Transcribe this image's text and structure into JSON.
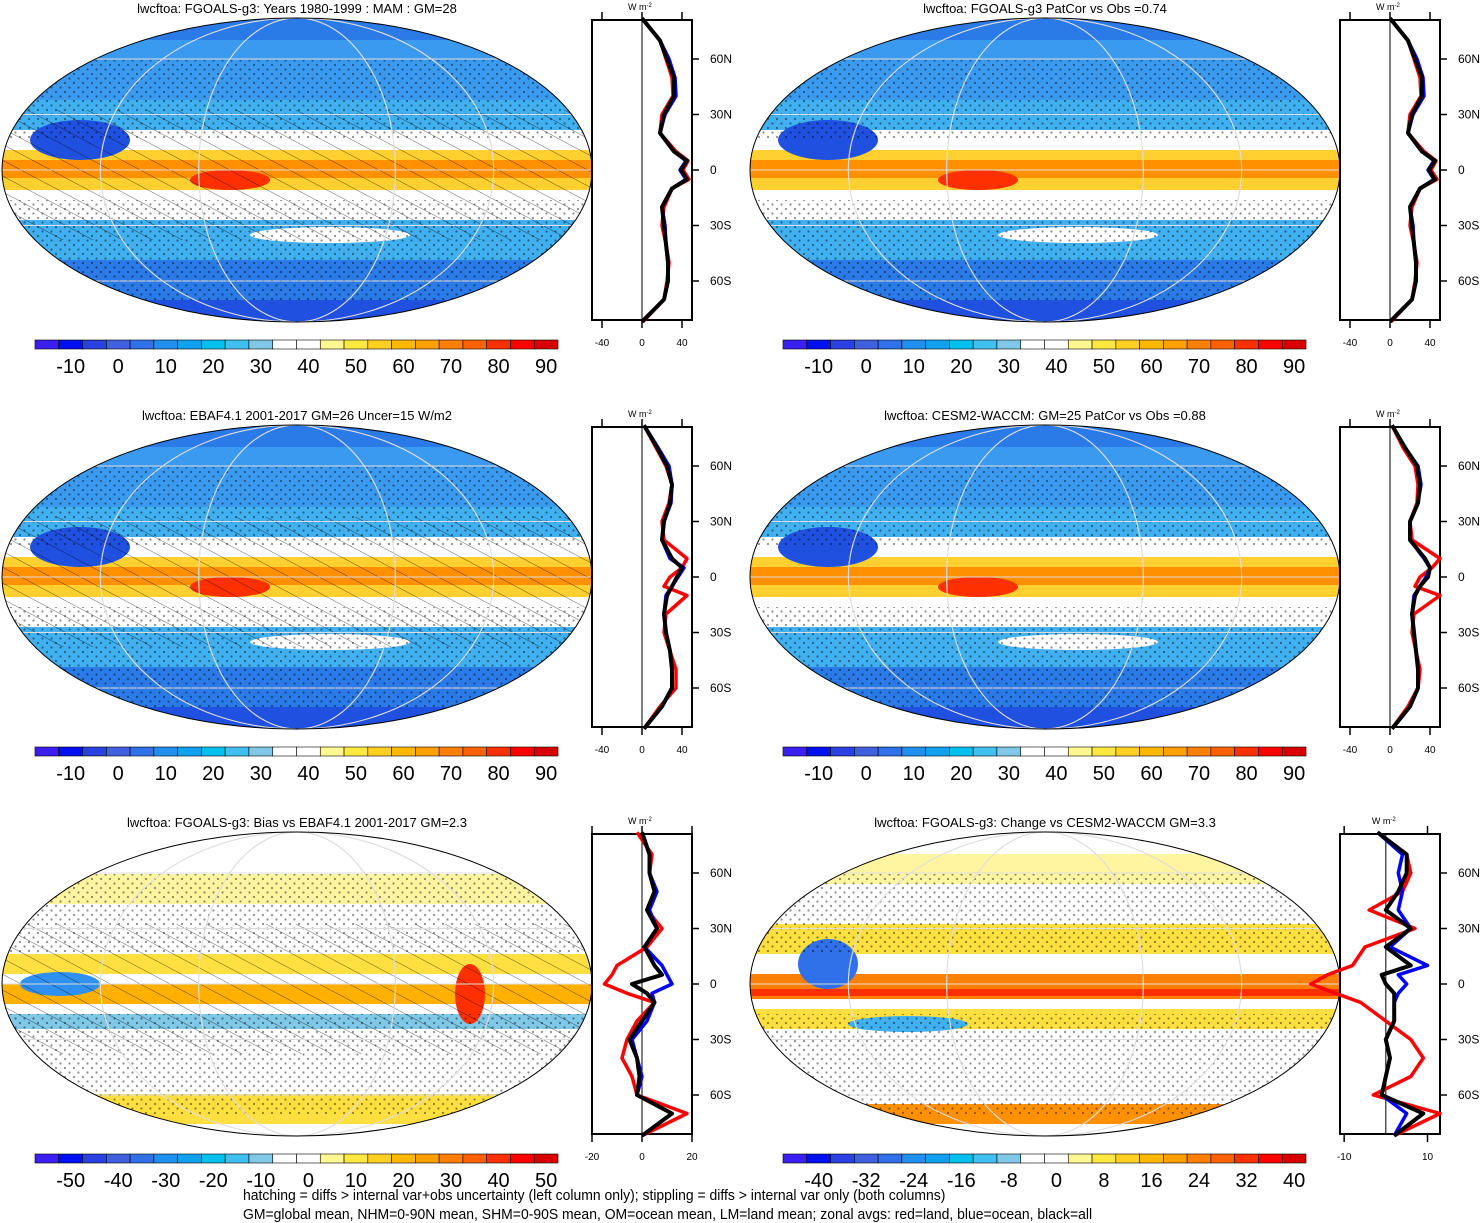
{
  "colorbar_colors": [
    "#3a1ff0",
    "#0010f0",
    "#2a40e0",
    "#4060e0",
    "#3070e8",
    "#2090f0",
    "#10a0f0",
    "#00c0f0",
    "#40c0f0",
    "#80c8e8",
    "#ffffff",
    "#ffffff",
    "#fff890",
    "#ffe840",
    "#ffd020",
    "#ffb800",
    "#ffa000",
    "#ff8000",
    "#ff6000",
    "#ff3000",
    "#ff0000",
    "#d80000"
  ],
  "series_colors": {
    "land": "#ff0000",
    "ocean": "#0000ff",
    "all": "#000000"
  },
  "zonal_unit": "W m",
  "zonal_unit_exp": "-2",
  "lat_labels": [
    "60N",
    "30N",
    "0",
    "30S",
    "60S"
  ],
  "chart_data": [
    {
      "type": "map+line",
      "title": "lwcftoa: FGOALS-g3: Years 1980-1999 : MAM : GM=28",
      "style": "clim",
      "colorbar_ticks": [
        "-10",
        "0",
        "10",
        "20",
        "30",
        "40",
        "50",
        "60",
        "70",
        "80",
        "90"
      ],
      "zonal_xticks": [
        "-40",
        "0",
        "40"
      ],
      "zonal_xlim": [
        -50,
        50
      ],
      "lat": [
        82,
        70,
        60,
        50,
        40,
        30,
        20,
        10,
        5,
        0,
        -5,
        -10,
        -20,
        -30,
        -40,
        -50,
        -60,
        -70,
        -82
      ],
      "series": [
        {
          "name": "land",
          "values": [
            0,
            18,
            24,
            30,
            31,
            20,
            18,
            34,
            46,
            41,
            47,
            30,
            22,
            20,
            24,
            27,
            25,
            22,
            1
          ]
        },
        {
          "name": "ocean",
          "values": [
            0,
            18,
            27,
            33,
            34,
            23,
            18,
            32,
            44,
            38,
            44,
            30,
            20,
            23,
            24,
            26,
            26,
            22,
            0
          ]
        },
        {
          "name": "all",
          "values": [
            0,
            18,
            25,
            32,
            32,
            22,
            18,
            32,
            45,
            39,
            45,
            30,
            20,
            22,
            24,
            26,
            26,
            22,
            0
          ]
        }
      ]
    },
    {
      "type": "map+line",
      "title": "lwcftoa: FGOALS-g3 PatCor vs Obs =0.74",
      "style": "clim",
      "colorbar_ticks": [
        "-10",
        "0",
        "10",
        "20",
        "30",
        "40",
        "50",
        "60",
        "70",
        "80",
        "90"
      ],
      "zonal_xticks": [
        "-40",
        "0",
        "40"
      ],
      "zonal_xlim": [
        -50,
        50
      ],
      "lat": [
        82,
        70,
        60,
        50,
        40,
        30,
        20,
        10,
        5,
        0,
        -5,
        -10,
        -20,
        -30,
        -40,
        -50,
        -60,
        -70,
        -82
      ],
      "series": [
        {
          "name": "land",
          "values": [
            0,
            18,
            24,
            30,
            31,
            20,
            18,
            34,
            46,
            41,
            47,
            30,
            22,
            20,
            24,
            27,
            25,
            22,
            1
          ]
        },
        {
          "name": "ocean",
          "values": [
            0,
            18,
            27,
            33,
            34,
            23,
            18,
            32,
            44,
            38,
            44,
            30,
            20,
            23,
            24,
            26,
            26,
            22,
            0
          ]
        },
        {
          "name": "all",
          "values": [
            0,
            18,
            25,
            32,
            32,
            22,
            18,
            32,
            45,
            39,
            45,
            30,
            20,
            22,
            24,
            26,
            26,
            22,
            0
          ]
        }
      ]
    },
    {
      "type": "map+line",
      "title": "lwcftoa: EBAF4.1 2001-2017 GM=26 Uncer=15 W/m2",
      "style": "clim",
      "colorbar_ticks": [
        "-10",
        "0",
        "10",
        "20",
        "30",
        "40",
        "50",
        "60",
        "70",
        "80",
        "90"
      ],
      "zonal_xticks": [
        "-40",
        "0",
        "40"
      ],
      "zonal_xlim": [
        -50,
        50
      ],
      "lat": [
        82,
        70,
        60,
        50,
        40,
        30,
        20,
        10,
        5,
        0,
        -5,
        -10,
        -20,
        -30,
        -40,
        -50,
        -60,
        -70,
        -82
      ],
      "series": [
        {
          "name": "land",
          "values": [
            2,
            14,
            24,
            30,
            27,
            20,
            22,
            45,
            40,
            28,
            22,
            45,
            24,
            22,
            28,
            34,
            34,
            18,
            2
          ]
        },
        {
          "name": "ocean",
          "values": [
            2,
            16,
            27,
            30,
            29,
            22,
            20,
            28,
            42,
            36,
            30,
            24,
            22,
            24,
            28,
            30,
            30,
            20,
            2
          ]
        },
        {
          "name": "all",
          "values": [
            2,
            15,
            25,
            30,
            28,
            22,
            20,
            30,
            40,
            35,
            30,
            25,
            22,
            24,
            28,
            30,
            30,
            20,
            2
          ]
        }
      ]
    },
    {
      "type": "map+line",
      "title": "lwcftoa: CESM2-WACCM: GM=25 PatCor vs Obs =0.88",
      "style": "clim",
      "colorbar_ticks": [
        "-10",
        "0",
        "10",
        "20",
        "30",
        "40",
        "50",
        "60",
        "70",
        "80",
        "90"
      ],
      "zonal_xticks": [
        "-40",
        "0",
        "40"
      ],
      "zonal_xlim": [
        -50,
        50
      ],
      "lat": [
        82,
        70,
        60,
        50,
        40,
        30,
        20,
        10,
        5,
        0,
        -5,
        -10,
        -20,
        -30,
        -40,
        -50,
        -60,
        -70,
        -82
      ],
      "series": [
        {
          "name": "land",
          "values": [
            2,
            13,
            25,
            28,
            27,
            20,
            22,
            50,
            42,
            30,
            25,
            50,
            24,
            22,
            26,
            30,
            28,
            18,
            2
          ]
        },
        {
          "name": "ocean",
          "values": [
            2,
            15,
            28,
            31,
            28,
            20,
            20,
            34,
            40,
            36,
            30,
            24,
            22,
            24,
            26,
            28,
            28,
            20,
            2
          ]
        },
        {
          "name": "all",
          "values": [
            2,
            15,
            27,
            30,
            28,
            20,
            20,
            35,
            40,
            38,
            30,
            25,
            22,
            24,
            26,
            28,
            28,
            20,
            2
          ]
        }
      ]
    },
    {
      "type": "map+line",
      "title": "lwcftoa: FGOALS-g3: Bias vs EBAF4.1 2001-2017 GM=2.3",
      "style": "bias",
      "colorbar_ticks": [
        "-50",
        "-40",
        "-30",
        "-20",
        "-10",
        "0",
        "10",
        "20",
        "30",
        "40",
        "50"
      ],
      "zonal_xticks": [
        "-20",
        "0",
        "20"
      ],
      "zonal_xlim": [
        -20,
        20
      ],
      "lat": [
        82,
        70,
        60,
        50,
        40,
        30,
        20,
        10,
        5,
        0,
        -5,
        -10,
        -20,
        -30,
        -40,
        -50,
        -60,
        -70,
        -82
      ],
      "series": [
        {
          "name": "land",
          "values": [
            -2,
            4,
            3,
            5,
            2,
            8,
            2,
            -10,
            -12,
            -15,
            -6,
            5,
            -2,
            -6,
            -8,
            -4,
            -2,
            18,
            0
          ]
        },
        {
          "name": "ocean",
          "values": [
            0,
            3,
            3,
            6,
            3,
            6,
            1,
            8,
            10,
            12,
            4,
            5,
            2,
            -4,
            -2,
            0,
            -2,
            12,
            0
          ]
        },
        {
          "name": "all",
          "values": [
            0,
            3,
            3,
            5,
            2,
            6,
            1,
            5,
            8,
            -4,
            2,
            5,
            0,
            -5,
            -2,
            -1,
            -2,
            12,
            0
          ]
        }
      ]
    },
    {
      "type": "map+line",
      "title": "lwcftoa: FGOALS-g3: Change vs CESM2-WACCM GM=3.3",
      "style": "change",
      "colorbar_ticks": [
        "-40",
        "-32",
        "-24",
        "-16",
        "-8",
        "0",
        "8",
        "16",
        "24",
        "32",
        "40"
      ],
      "zonal_xticks": [
        "-10",
        "10"
      ],
      "zonal_xlim": [
        -11,
        13
      ],
      "lat": [
        82,
        70,
        60,
        50,
        40,
        30,
        20,
        10,
        5,
        0,
        -5,
        -10,
        -20,
        -30,
        -40,
        -50,
        -60,
        -70,
        -82
      ],
      "series": [
        {
          "name": "land",
          "values": [
            -2,
            5,
            6,
            4,
            -4,
            7,
            -5,
            -8,
            -14,
            -18,
            -12,
            -6,
            0,
            6,
            9,
            6,
            -3,
            13,
            2
          ]
        },
        {
          "name": "ocean",
          "values": [
            -2,
            4,
            3,
            4,
            3,
            6,
            1,
            10,
            3,
            5,
            3,
            2,
            2,
            0,
            1,
            0,
            -1,
            5,
            2
          ]
        },
        {
          "name": "all",
          "values": [
            -2,
            5,
            5,
            3,
            0,
            6,
            0,
            6,
            -1,
            0,
            2,
            2,
            2,
            0,
            1,
            0,
            -1,
            9,
            2
          ]
        }
      ]
    }
  ],
  "footer": {
    "line1": "hatching = diffs > internal var+obs uncertainty (left column only); stippling = diffs > internal var only (both columns)",
    "line2": "GM=global mean, NHM=0-90N mean, SHM=0-90S mean, OM=ocean mean, LM=land mean; zonal avgs: red=land, blue=ocean, black=all"
  }
}
